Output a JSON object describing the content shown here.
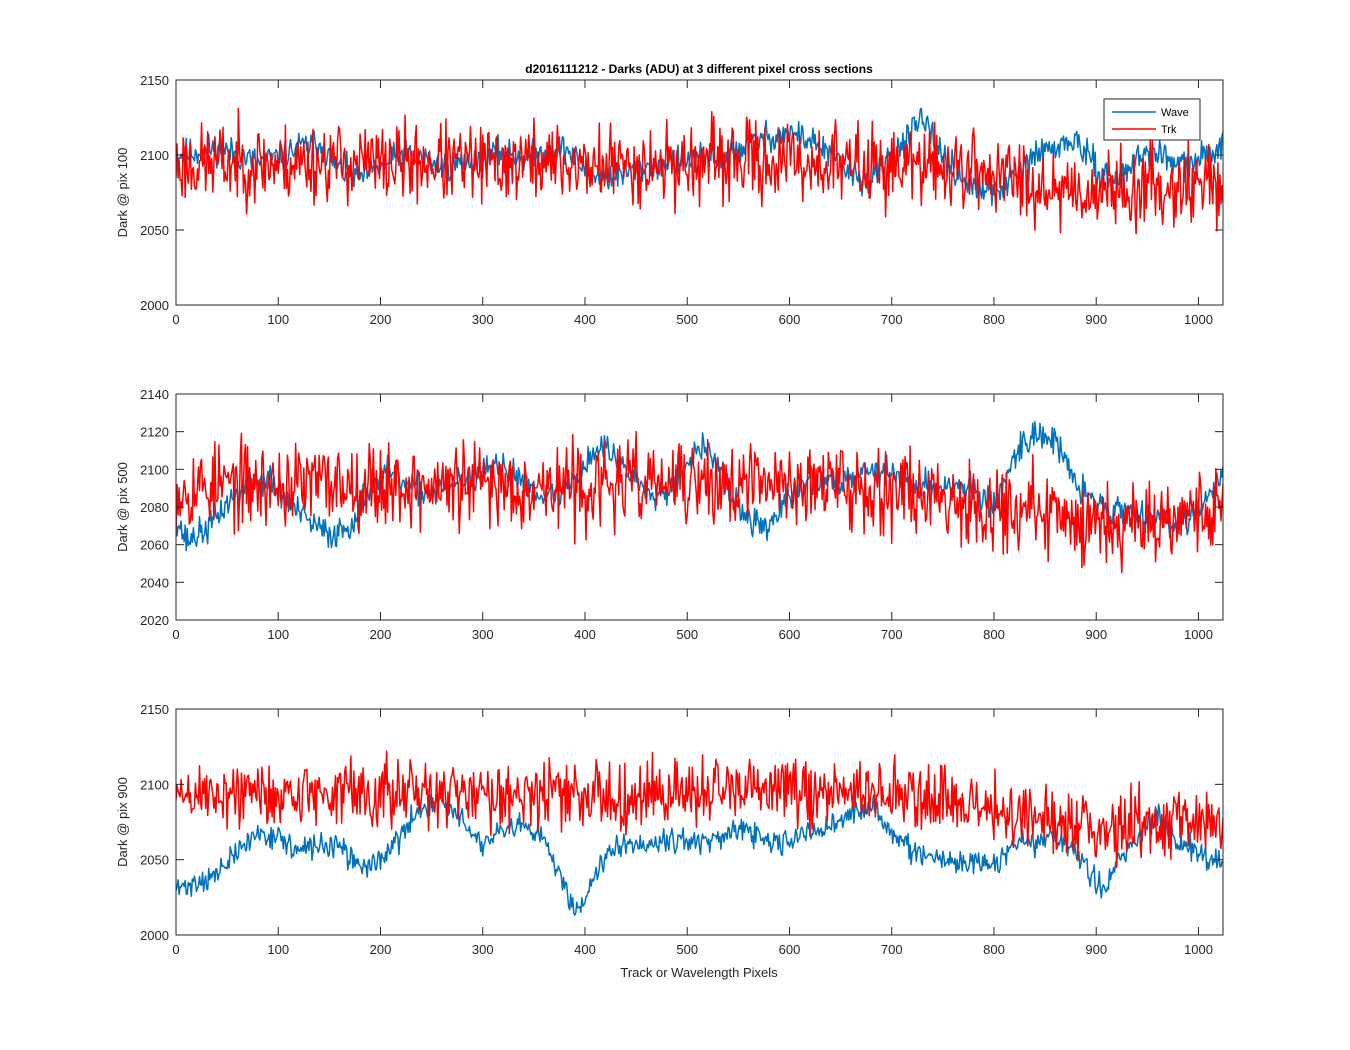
{
  "figure": {
    "title": "d2016111212 - Darks (ADU) at 3 different pixel cross sections",
    "xlabel": "Track or Wavelength Pixels"
  },
  "colors": {
    "wave": "#0072BD",
    "trk": "#FF0000",
    "axes": "#262626"
  },
  "chart_data": [
    {
      "type": "line",
      "ylabel": "Dark @ pix 100",
      "xlim": [
        0,
        1024
      ],
      "ylim": [
        2000,
        2150
      ],
      "xticks": [
        0,
        100,
        200,
        300,
        400,
        500,
        600,
        700,
        800,
        900,
        1000
      ],
      "yticks": [
        2000,
        2050,
        2100,
        2150
      ],
      "legend": {
        "location": "top-right",
        "entries": [
          "Wave",
          "Trk"
        ]
      },
      "grid": false,
      "series": [
        {
          "name": "Wave",
          "color": "#0072BD",
          "noise": 5,
          "seed": 11,
          "x": [
            0,
            20,
            40,
            60,
            80,
            100,
            120,
            140,
            160,
            180,
            200,
            220,
            240,
            260,
            280,
            300,
            320,
            340,
            360,
            380,
            400,
            420,
            440,
            460,
            480,
            500,
            520,
            540,
            560,
            580,
            600,
            620,
            640,
            660,
            680,
            700,
            720,
            730,
            740,
            760,
            780,
            800,
            820,
            840,
            860,
            880,
            900,
            920,
            940,
            960,
            980,
            1000,
            1024
          ],
          "y": [
            2100,
            2102,
            2105,
            2100,
            2095,
            2098,
            2105,
            2108,
            2090,
            2085,
            2092,
            2100,
            2098,
            2092,
            2095,
            2098,
            2102,
            2098,
            2100,
            2105,
            2090,
            2085,
            2088,
            2092,
            2095,
            2096,
            2098,
            2100,
            2108,
            2112,
            2115,
            2110,
            2100,
            2088,
            2082,
            2100,
            2115,
            2123,
            2110,
            2090,
            2078,
            2075,
            2085,
            2100,
            2105,
            2110,
            2090,
            2082,
            2098,
            2102,
            2092,
            2095,
            2108
          ]
        },
        {
          "name": "Trk",
          "color": "#FF0000",
          "noise": 13,
          "seed": 23,
          "x": [
            0,
            50,
            100,
            150,
            200,
            250,
            300,
            350,
            400,
            450,
            500,
            550,
            600,
            650,
            700,
            750,
            800,
            850,
            900,
            950,
            1000,
            1024
          ],
          "y": [
            2093,
            2095,
            2094,
            2096,
            2094,
            2095,
            2093,
            2096,
            2093,
            2094,
            2094,
            2096,
            2095,
            2094,
            2093,
            2092,
            2088,
            2080,
            2076,
            2078,
            2082,
            2080
          ]
        }
      ]
    },
    {
      "type": "line",
      "ylabel": "Dark @ pix 500",
      "xlim": [
        0,
        1024
      ],
      "ylim": [
        2020,
        2140
      ],
      "xticks": [
        0,
        100,
        200,
        300,
        400,
        500,
        600,
        700,
        800,
        900,
        1000
      ],
      "yticks": [
        2020,
        2040,
        2060,
        2080,
        2100,
        2120,
        2140
      ],
      "grid": false,
      "series": [
        {
          "name": "Wave",
          "color": "#0072BD",
          "noise": 4,
          "seed": 37,
          "x": [
            0,
            10,
            30,
            50,
            70,
            90,
            110,
            130,
            150,
            170,
            190,
            210,
            230,
            250,
            270,
            290,
            310,
            330,
            350,
            370,
            390,
            410,
            420,
            440,
            460,
            480,
            500,
            520,
            540,
            560,
            580,
            600,
            620,
            640,
            660,
            680,
            700,
            720,
            740,
            760,
            780,
            800,
            820,
            840,
            860,
            880,
            900,
            920,
            940,
            960,
            980,
            1000,
            1024
          ],
          "y": [
            2075,
            2062,
            2068,
            2082,
            2092,
            2095,
            2082,
            2072,
            2065,
            2070,
            2092,
            2098,
            2090,
            2088,
            2092,
            2095,
            2100,
            2098,
            2090,
            2085,
            2095,
            2110,
            2112,
            2100,
            2090,
            2088,
            2105,
            2112,
            2090,
            2072,
            2070,
            2085,
            2095,
            2092,
            2098,
            2100,
            2098,
            2093,
            2090,
            2092,
            2088,
            2080,
            2108,
            2120,
            2115,
            2092,
            2082,
            2078,
            2078,
            2075,
            2070,
            2080,
            2095
          ]
        },
        {
          "name": "Trk",
          "color": "#FF0000",
          "noise": 11,
          "seed": 53,
          "x": [
            0,
            50,
            100,
            150,
            200,
            250,
            300,
            350,
            400,
            450,
            500,
            550,
            600,
            650,
            700,
            750,
            800,
            850,
            900,
            950,
            1000,
            1024
          ],
          "y": [
            2090,
            2092,
            2091,
            2093,
            2092,
            2090,
            2092,
            2091,
            2090,
            2093,
            2092,
            2091,
            2093,
            2092,
            2090,
            2086,
            2080,
            2076,
            2072,
            2074,
            2078,
            2080
          ]
        }
      ]
    },
    {
      "type": "line",
      "ylabel": "Dark @ pix 900",
      "xlim": [
        0,
        1024
      ],
      "ylim": [
        2000,
        2150
      ],
      "xticks": [
        0,
        100,
        200,
        300,
        400,
        500,
        600,
        700,
        800,
        900,
        1000
      ],
      "yticks": [
        2000,
        2050,
        2100,
        2150
      ],
      "grid": false,
      "series": [
        {
          "name": "Wave",
          "color": "#0072BD",
          "noise": 4,
          "seed": 71,
          "x": [
            0,
            20,
            40,
            60,
            80,
            100,
            120,
            140,
            160,
            180,
            200,
            220,
            240,
            260,
            280,
            300,
            320,
            340,
            360,
            380,
            390,
            400,
            420,
            440,
            460,
            480,
            500,
            520,
            540,
            560,
            580,
            600,
            620,
            640,
            660,
            680,
            700,
            720,
            740,
            760,
            780,
            800,
            820,
            840,
            860,
            880,
            900,
            910,
            920,
            940,
            960,
            980,
            1000,
            1024
          ],
          "y": [
            2030,
            2035,
            2040,
            2055,
            2068,
            2065,
            2055,
            2060,
            2058,
            2045,
            2050,
            2065,
            2085,
            2090,
            2075,
            2060,
            2068,
            2072,
            2062,
            2035,
            2015,
            2025,
            2055,
            2062,
            2060,
            2065,
            2062,
            2062,
            2065,
            2070,
            2060,
            2062,
            2068,
            2072,
            2080,
            2085,
            2070,
            2055,
            2050,
            2048,
            2050,
            2045,
            2060,
            2062,
            2065,
            2055,
            2035,
            2028,
            2050,
            2065,
            2080,
            2062,
            2055,
            2050
          ]
        },
        {
          "name": "Trk",
          "color": "#FF0000",
          "noise": 11,
          "seed": 89,
          "x": [
            0,
            50,
            100,
            150,
            200,
            250,
            300,
            350,
            400,
            450,
            500,
            550,
            600,
            650,
            700,
            750,
            800,
            850,
            900,
            950,
            1000,
            1024
          ],
          "y": [
            2092,
            2094,
            2093,
            2095,
            2094,
            2092,
            2095,
            2094,
            2092,
            2093,
            2095,
            2094,
            2096,
            2095,
            2093,
            2088,
            2082,
            2076,
            2072,
            2074,
            2076,
            2078
          ]
        }
      ]
    }
  ]
}
